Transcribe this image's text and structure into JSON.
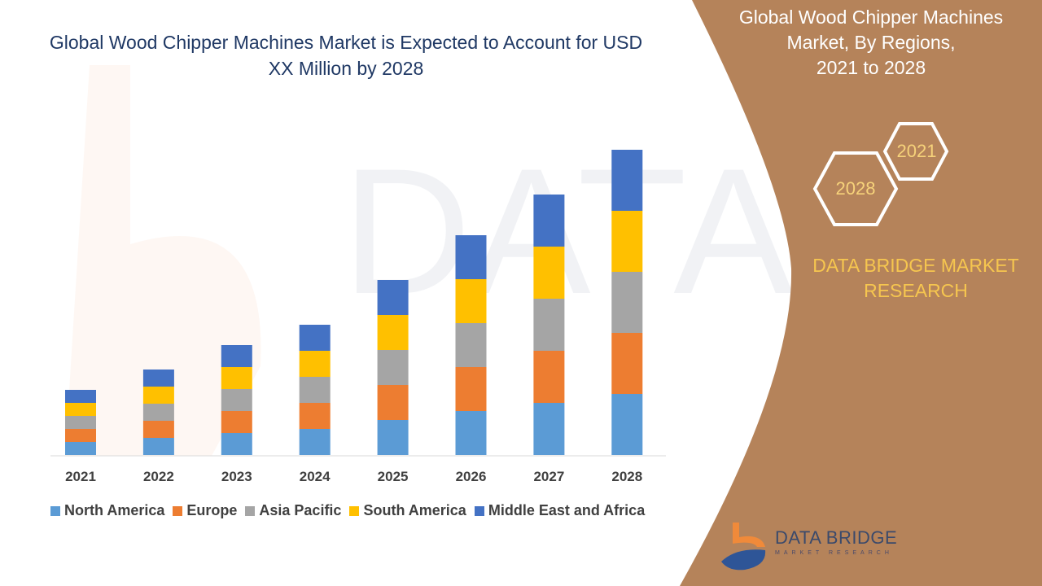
{
  "title": "Global Wood Chipper Machines Market is Expected to Account for USD XX Million by 2028",
  "side_panel": {
    "title_lines": [
      "Global Wood Chipper Machines",
      "Market, By Regions,",
      "2021 to 2028"
    ],
    "hex_labels": [
      "2021",
      "2028"
    ],
    "brand_lines": [
      "DATA BRIDGE MARKET",
      "RESEARCH"
    ],
    "logo_text": "DATA BRIDGE",
    "logo_subtext": "MARKET RESEARCH",
    "panel_color": "#b5835a"
  },
  "watermark": "DATA BRIDGE MARKET RESEARCH",
  "chart_data": {
    "type": "bar",
    "stacked": true,
    "title": "Global Wood Chipper Machines Market is Expected to Account for USD XX Million by 2028",
    "categories": [
      "2021",
      "2022",
      "2023",
      "2024",
      "2025",
      "2026",
      "2027",
      "2028"
    ],
    "y_axis_shown": false,
    "grid": false,
    "legend_position": "bottom",
    "series": [
      {
        "name": "North America",
        "color": "#5b9bd5",
        "values": [
          16,
          21,
          27,
          32,
          43,
          54,
          64,
          75
        ]
      },
      {
        "name": "Europe",
        "color": "#ed7d31",
        "values": [
          16,
          21,
          27,
          32,
          43,
          54,
          64,
          75
        ]
      },
      {
        "name": "Asia Pacific",
        "color": "#a5a5a5",
        "values": [
          16,
          21,
          27,
          32,
          43,
          54,
          64,
          75
        ]
      },
      {
        "name": "South America",
        "color": "#ffc000",
        "values": [
          16,
          21,
          27,
          32,
          43,
          54,
          64,
          75
        ]
      },
      {
        "name": "Middle East and Africa",
        "color": "#4472c4",
        "values": [
          16,
          21,
          27,
          32,
          43,
          54,
          64,
          75
        ]
      }
    ]
  }
}
